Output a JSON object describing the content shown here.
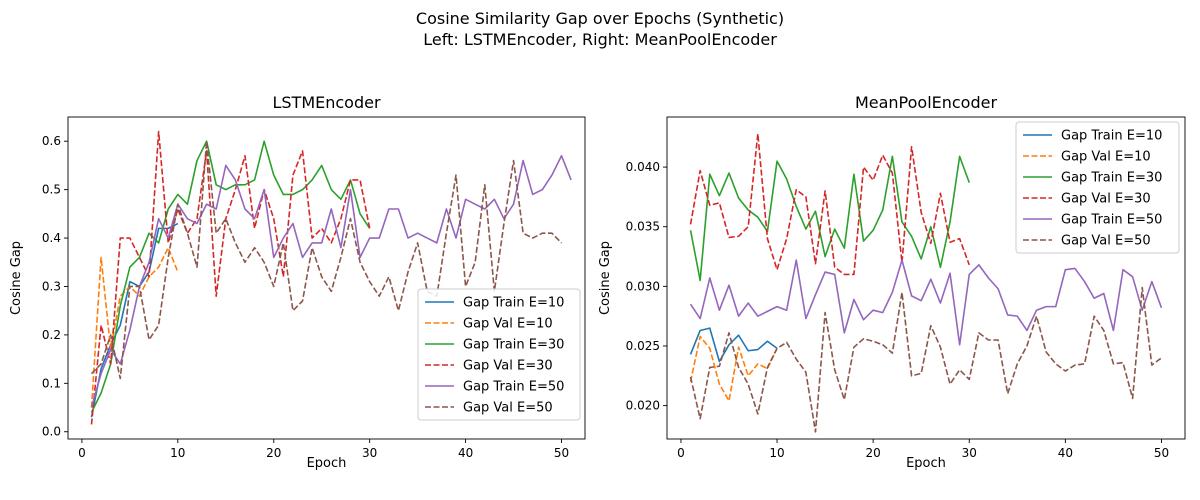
{
  "suptitle_line1": "Cosine Similarity Gap over Epochs (Synthetic)",
  "suptitle_line2": "Left: LSTMEncoder, Right: MeanPoolEncoder",
  "chart_data": [
    {
      "type": "line",
      "title": "LSTMEncoder",
      "xlabel": "Epoch",
      "ylabel": "Cosine Gap",
      "xlim": [
        -1.45,
        52.45
      ],
      "ylim": [
        -0.015,
        0.65
      ],
      "xticks": [
        0,
        10,
        20,
        30,
        40,
        50
      ],
      "yticks": [
        0.0,
        0.1,
        0.2,
        0.3,
        0.4,
        0.5,
        0.6
      ],
      "ytick_labels": [
        "0.0",
        "0.1",
        "0.2",
        "0.3",
        "0.4",
        "0.5",
        "0.6"
      ],
      "legend_position": "lower-right",
      "series": [
        {
          "name": "Gap Train E=10",
          "color": "#1f77b4",
          "dash": "solid",
          "values": [
            0.03,
            0.13,
            0.18,
            0.22,
            0.31,
            0.3,
            0.33,
            0.42,
            0.42,
            0.43
          ]
        },
        {
          "name": "Gap Val E=10",
          "color": "#ff7f0e",
          "dash": "dashed",
          "values": [
            0.05,
            0.36,
            0.17,
            0.28,
            0.3,
            0.28,
            0.32,
            0.34,
            0.38,
            0.33
          ]
        },
        {
          "name": "Gap Train E=30",
          "color": "#2ca02c",
          "dash": "solid",
          "values": [
            0.04,
            0.08,
            0.14,
            0.26,
            0.34,
            0.36,
            0.41,
            0.39,
            0.46,
            0.49,
            0.47,
            0.56,
            0.6,
            0.51,
            0.5,
            0.51,
            0.51,
            0.52,
            0.6,
            0.53,
            0.49,
            0.49,
            0.5,
            0.52,
            0.55,
            0.5,
            0.48,
            0.52,
            0.45,
            0.42
          ]
        },
        {
          "name": "Gap Val E=30",
          "color": "#d62728",
          "dash": "dashed",
          "values": [
            0.015,
            0.22,
            0.14,
            0.4,
            0.4,
            0.36,
            0.32,
            0.62,
            0.39,
            0.46,
            0.41,
            0.44,
            0.58,
            0.28,
            0.44,
            0.5,
            0.57,
            0.42,
            0.5,
            0.44,
            0.32,
            0.53,
            0.58,
            0.4,
            0.42,
            0.39,
            0.44,
            0.52,
            0.52,
            0.42
          ]
        },
        {
          "name": "Gap Train E=50",
          "color": "#9467bd",
          "dash": "solid",
          "values": [
            0.05,
            0.12,
            0.17,
            0.14,
            0.21,
            0.3,
            0.35,
            0.44,
            0.4,
            0.47,
            0.44,
            0.43,
            0.47,
            0.46,
            0.55,
            0.52,
            0.46,
            0.44,
            0.5,
            0.36,
            0.4,
            0.43,
            0.36,
            0.39,
            0.39,
            0.46,
            0.38,
            0.5,
            0.36,
            0.4,
            0.4,
            0.46,
            0.46,
            0.4,
            0.41,
            0.4,
            0.39,
            0.46,
            0.4,
            0.48,
            0.47,
            0.46,
            0.48,
            0.44,
            0.47,
            0.56,
            0.49,
            0.5,
            0.53,
            0.57,
            0.52
          ]
        },
        {
          "name": "Gap Val E=50",
          "color": "#8c564b",
          "dash": "dashed",
          "values": [
            0.12,
            0.14,
            0.2,
            0.11,
            0.3,
            0.3,
            0.19,
            0.22,
            0.36,
            0.47,
            0.41,
            0.34,
            0.6,
            0.41,
            0.44,
            0.39,
            0.35,
            0.38,
            0.35,
            0.3,
            0.39,
            0.25,
            0.27,
            0.38,
            0.32,
            0.29,
            0.36,
            0.44,
            0.35,
            0.31,
            0.28,
            0.32,
            0.25,
            0.33,
            0.39,
            0.29,
            0.28,
            0.41,
            0.53,
            0.3,
            0.35,
            0.51,
            0.29,
            0.43,
            0.56,
            0.41,
            0.4,
            0.41,
            0.41,
            0.39
          ]
        }
      ]
    },
    {
      "type": "line",
      "title": "MeanPoolEncoder",
      "xlabel": "Epoch",
      "ylabel": "Cosine Gap",
      "xlim": [
        -1.45,
        52.45
      ],
      "ylim": [
        0.0172,
        0.0442
      ],
      "xticks": [
        0,
        10,
        20,
        30,
        40,
        50
      ],
      "yticks": [
        0.02,
        0.025,
        0.03,
        0.035,
        0.04
      ],
      "ytick_labels": [
        "0.020",
        "0.025",
        "0.030",
        "0.035",
        "0.040"
      ],
      "legend_position": "upper-right",
      "series": [
        {
          "name": "Gap Train E=10",
          "color": "#1f77b4",
          "dash": "solid",
          "values": [
            0.0243,
            0.0263,
            0.0265,
            0.0237,
            0.0251,
            0.0259,
            0.0246,
            0.0247,
            0.0254,
            0.0248
          ]
        },
        {
          "name": "Gap Val E=10",
          "color": "#ff7f0e",
          "dash": "dashed",
          "values": [
            0.022,
            0.0258,
            0.0248,
            0.0218,
            0.0204,
            0.0249,
            0.0225,
            0.0235,
            0.0231,
            0.0248
          ]
        },
        {
          "name": "Gap Train E=30",
          "color": "#2ca02c",
          "dash": "solid",
          "values": [
            0.0347,
            0.0305,
            0.0394,
            0.0376,
            0.0395,
            0.0374,
            0.0364,
            0.0358,
            0.0346,
            0.0405,
            0.039,
            0.0367,
            0.0348,
            0.0363,
            0.0325,
            0.0348,
            0.0332,
            0.0394,
            0.0338,
            0.0347,
            0.0364,
            0.0409,
            0.0354,
            0.0342,
            0.0323,
            0.035,
            0.0316,
            0.0354,
            0.0409,
            0.0387
          ]
        },
        {
          "name": "Gap Val E=30",
          "color": "#d62728",
          "dash": "dashed",
          "values": [
            0.0352,
            0.0397,
            0.0368,
            0.037,
            0.0341,
            0.0342,
            0.035,
            0.0428,
            0.034,
            0.0314,
            0.034,
            0.0381,
            0.0375,
            0.0319,
            0.038,
            0.0316,
            0.031,
            0.031,
            0.04,
            0.0389,
            0.041,
            0.0395,
            0.032,
            0.0417,
            0.0362,
            0.0336,
            0.0378,
            0.0337,
            0.034,
            0.0318
          ]
        },
        {
          "name": "Gap Train E=50",
          "color": "#9467bd",
          "dash": "solid",
          "values": [
            0.0285,
            0.0273,
            0.0307,
            0.028,
            0.0301,
            0.0275,
            0.0286,
            0.0275,
            0.0279,
            0.0283,
            0.028,
            0.0322,
            0.0273,
            0.0293,
            0.0312,
            0.031,
            0.0261,
            0.0289,
            0.0272,
            0.028,
            0.0278,
            0.0295,
            0.0322,
            0.0292,
            0.0288,
            0.0306,
            0.0286,
            0.0311,
            0.0251,
            0.031,
            0.0318,
            0.0307,
            0.0298,
            0.0276,
            0.0275,
            0.0263,
            0.028,
            0.0283,
            0.0283,
            0.0314,
            0.0315,
            0.0304,
            0.029,
            0.0294,
            0.0263,
            0.0314,
            0.0308,
            0.028,
            0.0304,
            0.0282
          ]
        },
        {
          "name": "Gap Val E=50",
          "color": "#8c564b",
          "dash": "dashed",
          "values": [
            0.0224,
            0.0189,
            0.0232,
            0.0233,
            0.0261,
            0.0232,
            0.0218,
            0.0193,
            0.0232,
            0.0248,
            0.0253,
            0.0239,
            0.0228,
            0.0178,
            0.0278,
            0.023,
            0.0205,
            0.0249,
            0.0256,
            0.0254,
            0.0251,
            0.0244,
            0.0295,
            0.0225,
            0.0227,
            0.0267,
            0.0249,
            0.0218,
            0.023,
            0.0222,
            0.0261,
            0.0255,
            0.0255,
            0.021,
            0.0235,
            0.025,
            0.0275,
            0.0245,
            0.0235,
            0.0229,
            0.0234,
            0.0235,
            0.0275,
            0.0263,
            0.0235,
            0.0236,
            0.0206,
            0.0299,
            0.0234,
            0.024
          ]
        }
      ]
    }
  ]
}
